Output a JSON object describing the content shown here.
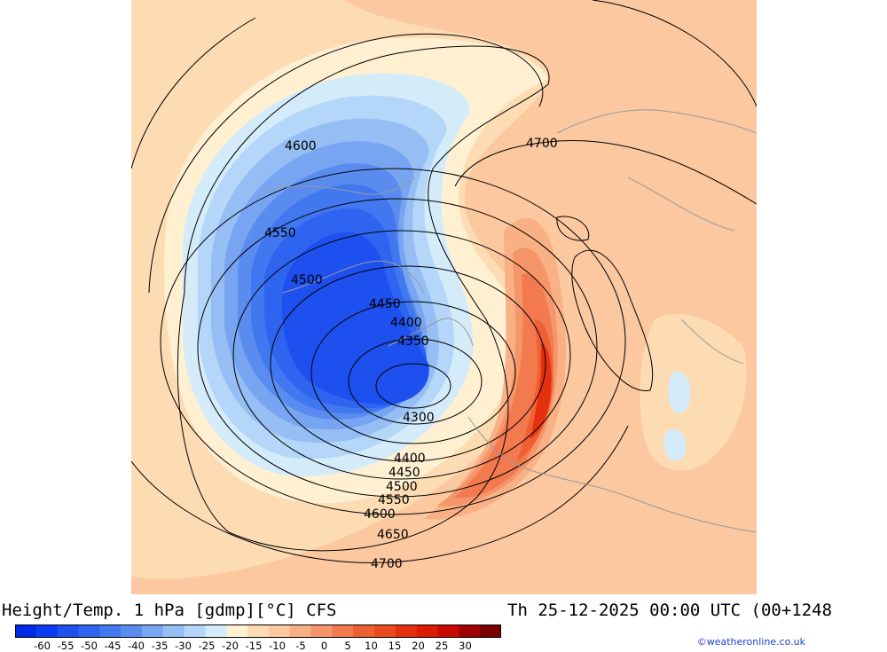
{
  "header": {
    "title": "Height/Temp. 1 hPa [gdmp][°C] CFS",
    "datetime": "Th 25-12-2025 00:00 UTC (00+1248"
  },
  "map": {
    "contour_labels": [
      "4300",
      "4350",
      "4400",
      "4450",
      "4500",
      "4550",
      "4600",
      "4650",
      "4700",
      "4400",
      "4450",
      "4500",
      "4550",
      "4600",
      "4700"
    ]
  },
  "colorbar": {
    "labels": [
      "-60",
      "-55",
      "-50",
      "-45",
      "-40",
      "-35",
      "-30",
      "-25",
      "-20",
      "-15",
      "-10",
      "-5",
      "0",
      "5",
      "10",
      "15",
      "20",
      "25",
      "30"
    ],
    "colors": [
      "#0028e6",
      "#0a3cf0",
      "#1e50f0",
      "#2e64f0",
      "#4178f0",
      "#5a8cf0",
      "#78a5f2",
      "#96bef5",
      "#b4d6f8",
      "#d4ebfa",
      "#fff0d2",
      "#fddcb4",
      "#fbc8a0",
      "#f9b084",
      "#f5966a",
      "#f27a4e",
      "#ee5f32",
      "#ea4a1e",
      "#e4300e",
      "#dc1c00",
      "#c80a00",
      "#a00000",
      "#7a0000"
    ]
  },
  "footer": {
    "credit": "©weatheronline.co.uk"
  }
}
